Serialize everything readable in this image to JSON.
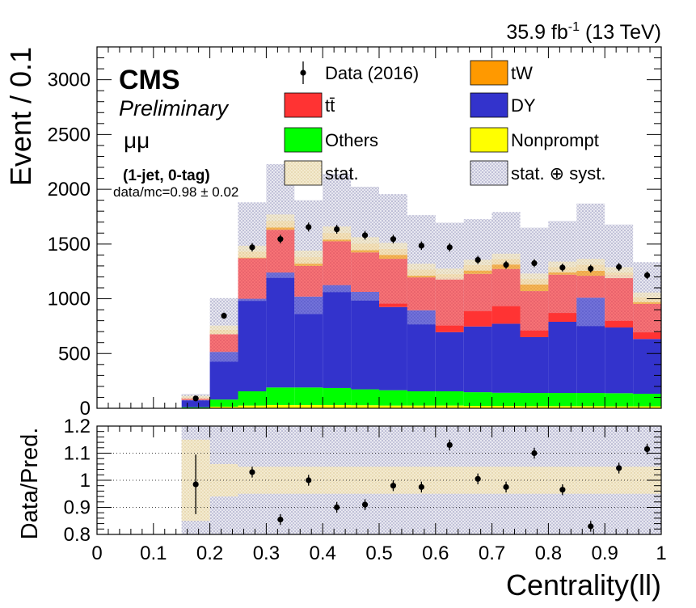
{
  "header": {
    "lumi": "35.9 fb",
    "lumi_sup": "-1",
    "energy": " (13 TeV)"
  },
  "labels": {
    "cms": "CMS",
    "preliminary": "Preliminary",
    "channel": "μμ",
    "category": "(1-jet, 0-tag)",
    "ratio_text": "data/mc=0.98 ± 0.02"
  },
  "legend": {
    "items": [
      {
        "label": "Data (2016)",
        "kind": "data"
      },
      {
        "label": "tW",
        "kind": "fill",
        "color": "#ff9900"
      },
      {
        "label": "tt̄",
        "kind": "fill",
        "color": "#ff3333"
      },
      {
        "label": "DY",
        "kind": "fill",
        "color": "#3333cc"
      },
      {
        "label": "Others",
        "kind": "fill",
        "color": "#00ff00"
      },
      {
        "label": "Nonprompt",
        "kind": "fill",
        "color": "#ffff00"
      },
      {
        "label": "stat.",
        "kind": "stat"
      },
      {
        "label": "stat. ⊕ syst.",
        "kind": "syst"
      }
    ]
  },
  "chart_data": [
    {
      "type": "bar",
      "stacked": true,
      "xlabel": "Centrality(ll)",
      "ylabel": "Event / 0.1",
      "xlim": [
        0,
        1
      ],
      "ylim": [
        0,
        3300
      ],
      "yticks": [
        0,
        500,
        1000,
        1500,
        2000,
        2500,
        3000
      ],
      "bin_edges": [
        0.15,
        0.2,
        0.25,
        0.3,
        0.35,
        0.4,
        0.45,
        0.5,
        0.55,
        0.6,
        0.65,
        0.7,
        0.75,
        0.8,
        0.85,
        0.9,
        0.95,
        1.0
      ],
      "series": [
        {
          "name": "Nonprompt",
          "color": "#ffff00",
          "values": [
            2,
            15,
            25,
            30,
            30,
            30,
            28,
            25,
            25,
            25,
            22,
            22,
            20,
            20,
            20,
            18,
            18
          ]
        },
        {
          "name": "Others",
          "color": "#00ff00",
          "values": [
            8,
            65,
            130,
            160,
            160,
            155,
            145,
            140,
            130,
            130,
            125,
            120,
            120,
            120,
            120,
            120,
            115
          ]
        },
        {
          "name": "DY",
          "color": "#3333cc",
          "values": [
            65,
            435,
            845,
            1050,
            830,
            940,
            890,
            760,
            740,
            540,
            600,
            630,
            510,
            650,
            870,
            600,
            500
          ]
        },
        {
          "name": "tt̄",
          "color": "#ff3333",
          "values": [
            22,
            165,
            370,
            390,
            280,
            400,
            360,
            440,
            300,
            500,
            480,
            500,
            420,
            430,
            200,
            480,
            320
          ]
        },
        {
          "name": "tW",
          "color": "#ff9900",
          "values": [
            3,
            35,
            60,
            80,
            80,
            75,
            80,
            90,
            70,
            30,
            80,
            90,
            110,
            70,
            100,
            20,
            60
          ]
        }
      ],
      "data": {
        "name": "Data (2016)",
        "x": [
          0.175,
          0.225,
          0.275,
          0.325,
          0.375,
          0.425,
          0.475,
          0.525,
          0.575,
          0.625,
          0.675,
          0.725,
          0.775,
          0.825,
          0.875,
          0.925,
          0.975
        ],
        "y": [
          90,
          845,
          1470,
          1545,
          1655,
          1635,
          1580,
          1545,
          1485,
          1470,
          1355,
          1310,
          1325,
          1285,
          1275,
          1290,
          1215
        ]
      },
      "stat_band": [
        15,
        40,
        55,
        60,
        60,
        60,
        60,
        55,
        55,
        50,
        50,
        50,
        50,
        50,
        55,
        50,
        45
      ],
      "syst_band": [
        30,
        290,
        450,
        520,
        520,
        540,
        520,
        500,
        500,
        470,
        420,
        430,
        470,
        420,
        560,
        440,
        320
      ]
    },
    {
      "type": "scatter",
      "xlabel": "Centrality(ll)",
      "ylabel": "Data/Pred.",
      "xlim": [
        0,
        1
      ],
      "ylim": [
        0.8,
        1.2
      ],
      "yticks": [
        0.8,
        0.9,
        1.0,
        1.1,
        1.2
      ],
      "xticks": [
        0,
        0.1,
        0.2,
        0.3,
        0.4,
        0.5,
        0.6,
        0.7,
        0.8,
        0.9,
        1
      ],
      "x": [
        0.175,
        0.275,
        0.325,
        0.375,
        0.425,
        0.475,
        0.525,
        0.575,
        0.625,
        0.675,
        0.725,
        0.775,
        0.825,
        0.875,
        0.925,
        0.975
      ],
      "y": [
        0.985,
        1.03,
        0.855,
        1.0,
        0.9,
        0.91,
        0.98,
        0.975,
        1.13,
        1.005,
        0.975,
        1.1,
        0.965,
        0.83,
        1.045,
        1.115
      ],
      "err": [
        0.11,
        0.02,
        0.02,
        0.02,
        0.02,
        0.02,
        0.02,
        0.02,
        0.02,
        0.02,
        0.02,
        0.02,
        0.02,
        0.02,
        0.02,
        0.02
      ],
      "stat_band": [
        0.15,
        0.06,
        0.05,
        0.05,
        0.05,
        0.05,
        0.05,
        0.05,
        0.05,
        0.05,
        0.05,
        0.05,
        0.05,
        0.05,
        0.05,
        0.05,
        0.05
      ],
      "syst_band": [
        0.35,
        0.35,
        0.27,
        0.3,
        0.32,
        0.33,
        0.33,
        0.33,
        0.33,
        0.33,
        0.33,
        0.33,
        0.33,
        0.33,
        0.33,
        0.33,
        0.33
      ]
    }
  ]
}
